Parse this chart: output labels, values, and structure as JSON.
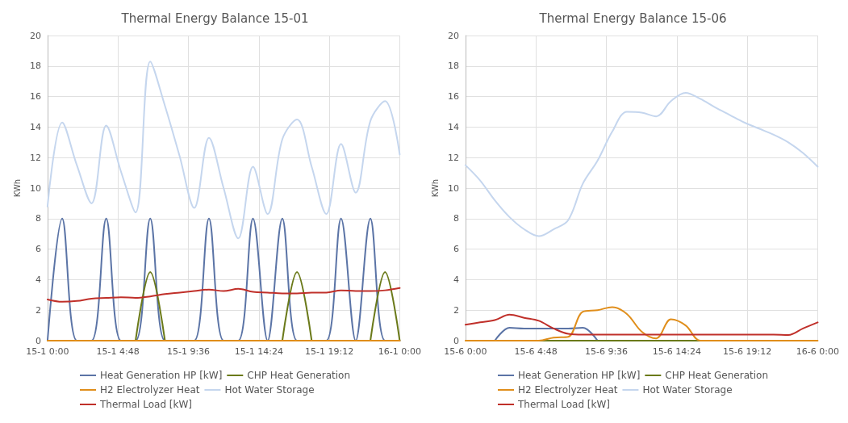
{
  "chart_data": [
    {
      "type": "line",
      "title": "Thermal Energy Balance 15-01",
      "ylabel": "KWh",
      "x": [
        "--01-15T00:00",
        "--01-15T01:00",
        "--01-15T02:00",
        "--01-15T03:00",
        "--01-15T04:00",
        "--01-15T05:00",
        "--01-15T06:00",
        "--01-15T07:00",
        "--01-15T08:00",
        "--01-15T09:00",
        "--01-15T10:00",
        "--01-15T11:00",
        "--01-15T12:00",
        "--01-15T13:00",
        "--01-15T14:00",
        "--01-15T15:00",
        "--01-15T16:00",
        "--01-15T17:00",
        "--01-15T18:00",
        "--01-15T19:00",
        "--01-15T20:00",
        "--01-15T21:00",
        "--01-15T22:00",
        "--01-15T23:00",
        "--01-16T00:00"
      ],
      "xlim": [
        "--01-15T00:00",
        "--01-16T00:00"
      ],
      "xticks": [
        {
          "value": "--01-15T00:00",
          "label": "15-1 0:00"
        },
        {
          "value": "--01-15T04:48",
          "label": "15-1 4:48"
        },
        {
          "value": "--01-15T09:36",
          "label": "15-1 9:36"
        },
        {
          "value": "--01-15T14:24",
          "label": "15-1 14:24"
        },
        {
          "value": "--01-15T19:12",
          "label": "15-1 19:12"
        },
        {
          "value": "--01-16T00:00",
          "label": "16-1 0:00"
        }
      ],
      "ylim": [
        0,
        20
      ],
      "yticks": [
        0,
        2,
        4,
        6,
        8,
        10,
        12,
        14,
        16,
        18,
        20
      ],
      "grid": true,
      "legend": "bottom",
      "marker": "none",
      "line_style": "solid",
      "series": [
        {
          "name": "Heat Generation HP [kW]",
          "color": "#5b74a6",
          "values": [
            0,
            8,
            0,
            0,
            8,
            0,
            0,
            8,
            0,
            0,
            0,
            8,
            0,
            0,
            8,
            0,
            8,
            0,
            0,
            0,
            8,
            0,
            8,
            0,
            0
          ]
        },
        {
          "name": "CHP Heat Generation",
          "color": "#6b7a1a",
          "values": [
            null,
            null,
            null,
            null,
            null,
            null,
            0,
            4.5,
            0,
            null,
            null,
            null,
            null,
            null,
            null,
            null,
            0,
            4.5,
            0,
            null,
            null,
            null,
            0,
            4.5,
            0
          ]
        },
        {
          "name": "H2 Electrolyzer Heat",
          "color": "#e08e1b",
          "values": [
            0,
            0,
            0,
            0,
            0,
            0,
            0,
            0,
            0,
            0,
            0,
            0,
            0,
            0,
            0,
            0,
            0,
            0,
            0,
            0,
            0,
            0,
            0,
            0,
            0
          ]
        },
        {
          "name": "Hot Water Storage",
          "color": "#c5d6ee",
          "values": [
            8.8,
            14.3,
            11.5,
            9.0,
            14.1,
            11.1,
            8.4,
            18.3,
            15.4,
            12.1,
            8.7,
            13.3,
            10.0,
            6.7,
            11.4,
            8.3,
            13.2,
            14.5,
            11.4,
            8.3,
            12.9,
            9.7,
            14.4,
            15.7,
            12.2
          ]
        },
        {
          "name": "Thermal Load [kW]",
          "color": "#c0302a",
          "values": [
            2.7,
            2.55,
            2.6,
            2.75,
            2.8,
            2.85,
            2.8,
            2.9,
            3.05,
            3.15,
            3.25,
            3.35,
            3.25,
            3.4,
            3.2,
            3.15,
            3.1,
            3.1,
            3.15,
            3.15,
            3.3,
            3.25,
            3.25,
            3.3,
            3.45
          ]
        }
      ]
    },
    {
      "type": "line",
      "title": "Thermal Energy Balance 15-06",
      "ylabel": "KWh",
      "x": [
        "--06-15T00:00",
        "--06-15T01:00",
        "--06-15T02:00",
        "--06-15T03:00",
        "--06-15T04:00",
        "--06-15T05:00",
        "--06-15T06:00",
        "--06-15T07:00",
        "--06-15T08:00",
        "--06-15T09:00",
        "--06-15T10:00",
        "--06-15T11:00",
        "--06-15T12:00",
        "--06-15T13:00",
        "--06-15T14:00",
        "--06-15T15:00",
        "--06-15T16:00",
        "--06-15T17:00",
        "--06-15T18:00",
        "--06-15T19:00",
        "--06-15T20:00",
        "--06-15T21:00",
        "--06-15T22:00",
        "--06-15T23:00",
        "--06-16T00:00"
      ],
      "xlim": [
        "--06-15T00:00",
        "--06-16T00:00"
      ],
      "xticks": [
        {
          "value": "--06-15T00:00",
          "label": "15-6 0:00"
        },
        {
          "value": "--06-15T04:48",
          "label": "15-6 4:48"
        },
        {
          "value": "--06-15T09:36",
          "label": "15-6 9:36"
        },
        {
          "value": "--06-15T14:24",
          "label": "15-6 14:24"
        },
        {
          "value": "--06-15T19:12",
          "label": "15-6 19:12"
        },
        {
          "value": "--06-16T00:00",
          "label": "16-6 0:00"
        }
      ],
      "ylim": [
        0,
        20
      ],
      "yticks": [
        0,
        2,
        4,
        6,
        8,
        10,
        12,
        14,
        16,
        18,
        20
      ],
      "grid": true,
      "legend": "bottom",
      "marker": "none",
      "line_style": "solid",
      "series": [
        {
          "name": "Heat Generation HP [kW]",
          "color": "#5b74a6",
          "values": [
            null,
            null,
            0,
            0.85,
            0.8,
            0.8,
            0.8,
            0.8,
            0.85,
            0,
            null,
            null,
            null,
            null,
            null,
            null,
            null,
            null,
            null,
            null,
            null,
            null,
            null,
            null,
            null
          ]
        },
        {
          "name": "CHP Heat Generation",
          "color": "#6b7a1a",
          "values": [
            null,
            null,
            null,
            null,
            null,
            0,
            0,
            0,
            0,
            0,
            0,
            0,
            0,
            0,
            0,
            0,
            0,
            null,
            null,
            null,
            null,
            null,
            null,
            null,
            null
          ]
        },
        {
          "name": "H2 Electrolyzer Heat",
          "color": "#e08e1b",
          "values": [
            0,
            0,
            0,
            0,
            0,
            0,
            0.2,
            0.25,
            1.9,
            2.0,
            2.2,
            1.75,
            0.6,
            0.15,
            1.4,
            1.0,
            0,
            0,
            0,
            0,
            0,
            0,
            0,
            0,
            0
          ]
        },
        {
          "name": "Hot Water Storage",
          "color": "#c5d6ee",
          "values": [
            11.5,
            10.5,
            9.2,
            8.1,
            7.3,
            6.85,
            7.3,
            7.9,
            10.3,
            11.8,
            13.7,
            15.0,
            14.95,
            14.7,
            15.7,
            16.25,
            15.85,
            15.3,
            14.8,
            14.3,
            13.9,
            13.5,
            13.0,
            12.3,
            11.4
          ]
        },
        {
          "name": "Thermal Load [kW]",
          "color": "#c0302a",
          "values": [
            1.05,
            1.2,
            1.35,
            1.7,
            1.5,
            1.3,
            0.8,
            0.45,
            0.4,
            0.4,
            0.4,
            0.4,
            0.4,
            0.4,
            0.4,
            0.4,
            0.4,
            0.4,
            0.4,
            0.4,
            0.4,
            0.4,
            0.37,
            0.8,
            1.2
          ]
        }
      ]
    }
  ]
}
